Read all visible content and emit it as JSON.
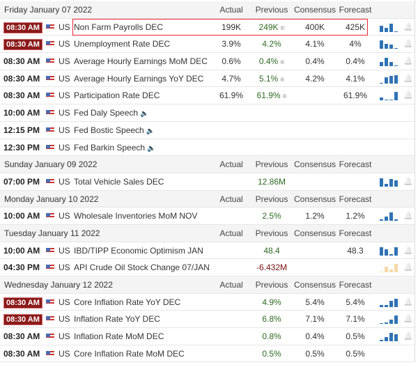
{
  "columns": {
    "actual": "Actual",
    "previous": "Previous",
    "consensus": "Consensus",
    "forecast": "Forecast"
  },
  "rows": [
    {
      "type": "header",
      "date": "Friday January 07 2022"
    },
    {
      "type": "event",
      "time": "08:30 AM",
      "hi": true,
      "country": "US",
      "event": "Non Farm Payrolls DEC",
      "actual": "199K",
      "previous": "249K",
      "prev_revised": true,
      "consensus": "400K",
      "forecast": "425K",
      "spark": [
        0.7,
        0.5,
        1,
        0.1
      ],
      "highlight": true
    },
    {
      "type": "event",
      "time": "08:30 AM",
      "hi": true,
      "country": "US",
      "event": "Unemployment Rate DEC",
      "actual": "3.9%",
      "previous": "4.2%",
      "consensus": "4.1%",
      "forecast": "4%",
      "spark": [
        1,
        0.6,
        0.5,
        0.1
      ]
    },
    {
      "type": "event",
      "time": "08:30 AM",
      "country": "US",
      "event": "Average Hourly Earnings MoM DEC",
      "actual": "0.6%",
      "previous": "0.4%",
      "prev_revised": true,
      "consensus": "0.4%",
      "forecast": "0.4%",
      "spark": [
        0.5,
        1,
        0.5,
        0.1
      ]
    },
    {
      "type": "event",
      "time": "08:30 AM",
      "country": "US",
      "event": "Average Hourly Earnings YoY DEC",
      "actual": "4.7%",
      "previous": "5.1%",
      "prev_revised": true,
      "consensus": "4.2%",
      "forecast": "4.1%",
      "spark": [
        0.1,
        0.7,
        0.9,
        1
      ]
    },
    {
      "type": "event",
      "time": "08:30 AM",
      "country": "US",
      "event": "Participation Rate DEC",
      "actual": "61.9%",
      "previous": "61.9%",
      "prev_revised": true,
      "consensus": "",
      "forecast": "61.9%",
      "spark": [
        0.4,
        0.15,
        0.15,
        1
      ]
    },
    {
      "type": "event",
      "time": "10:00 AM",
      "country": "US",
      "event": "Fed Daly Speech",
      "speech": true
    },
    {
      "type": "event",
      "time": "12:15 PM",
      "country": "US",
      "event": "Fed Bostic Speech",
      "speech": true
    },
    {
      "type": "event",
      "time": "12:30 PM",
      "country": "US",
      "event": "Fed Barkin Speech",
      "speech": true
    },
    {
      "type": "header",
      "date": "Sunday January 09 2022"
    },
    {
      "type": "event",
      "time": "07:00 PM",
      "country": "US",
      "event": "Total Vehicle Sales DEC",
      "actual": "",
      "previous": "12.86M",
      "consensus": "",
      "forecast": "",
      "spark": [
        1,
        0.3,
        0.9,
        0.7
      ]
    },
    {
      "type": "header",
      "date": "Monday January 10 2022"
    },
    {
      "type": "event",
      "time": "10:00 AM",
      "country": "US",
      "event": "Wholesale Inventories MoM NOV",
      "actual": "",
      "previous": "2.5%",
      "consensus": "1.2%",
      "forecast": "1.2%",
      "spark": [
        0.15,
        0.5,
        1,
        0.15
      ]
    },
    {
      "type": "header",
      "date": "Tuesday January 11 2022"
    },
    {
      "type": "event",
      "time": "10:00 AM",
      "country": "US",
      "event": "IBD/TIPP Economic Optimism JAN",
      "actual": "",
      "previous": "48.4",
      "consensus": "",
      "forecast": "48.3",
      "spark": [
        1,
        0.7,
        0.15,
        1
      ]
    },
    {
      "type": "event",
      "time": "04:30 PM",
      "country": "US",
      "event": "API Crude Oil Stock Change 07/JAN",
      "actual": "",
      "previous": "-6.432M",
      "prev_color": "red",
      "consensus": "",
      "forecast": "",
      "spark": [
        0.1,
        0.7,
        0.4,
        1
      ],
      "pale": true
    },
    {
      "type": "header",
      "date": "Wednesday January 12 2022"
    },
    {
      "type": "event",
      "time": "08:30 AM",
      "hi": true,
      "country": "US",
      "event": "Core Inflation Rate YoY DEC",
      "actual": "",
      "previous": "4.9%",
      "consensus": "5.4%",
      "forecast": "5.4%",
      "spark": [
        0.2,
        0.2,
        0.7,
        1
      ]
    },
    {
      "type": "event",
      "time": "08:30 AM",
      "hi": true,
      "country": "US",
      "event": "Inflation Rate YoY DEC",
      "actual": "",
      "previous": "6.8%",
      "consensus": "7.1%",
      "forecast": "7.1%",
      "spark": [
        0.1,
        0.2,
        0.5,
        1
      ]
    },
    {
      "type": "event",
      "time": "08:30 AM",
      "country": "US",
      "event": "Inflation Rate MoM DEC",
      "actual": "",
      "previous": "0.8%",
      "consensus": "0.4%",
      "forecast": "0.5%",
      "spark": [
        0.15,
        0.5,
        1,
        0.8
      ]
    },
    {
      "type": "event",
      "time": "08:30 AM",
      "country": "US",
      "event": "Core Inflation Rate MoM DEC",
      "actual": "",
      "previous": "0.5%",
      "consensus": "0.5%",
      "forecast": "0.5%",
      "nobell": true
    }
  ]
}
